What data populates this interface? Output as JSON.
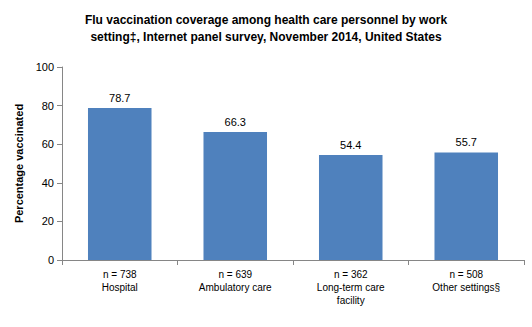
{
  "chart_data": {
    "type": "bar",
    "title": "Flu vaccination coverage among health care personnel by work\nsetting‡, Internet panel survey, November 2014, United States",
    "y_label": "Percentage vaccinated",
    "categories": [
      "n = 738\nHospital",
      "n = 639\nAmbulatory care",
      "n = 362\nLong-term care\nfacility",
      "n = 508\nOther settings§"
    ],
    "values": [
      78.7,
      66.3,
      54.4,
      55.7
    ],
    "color": "#4f81bd",
    "ylim": [
      0,
      100
    ],
    "yticks": [
      0,
      20,
      40,
      60,
      80,
      100
    ],
    "grid": false,
    "data_labels": true
  }
}
